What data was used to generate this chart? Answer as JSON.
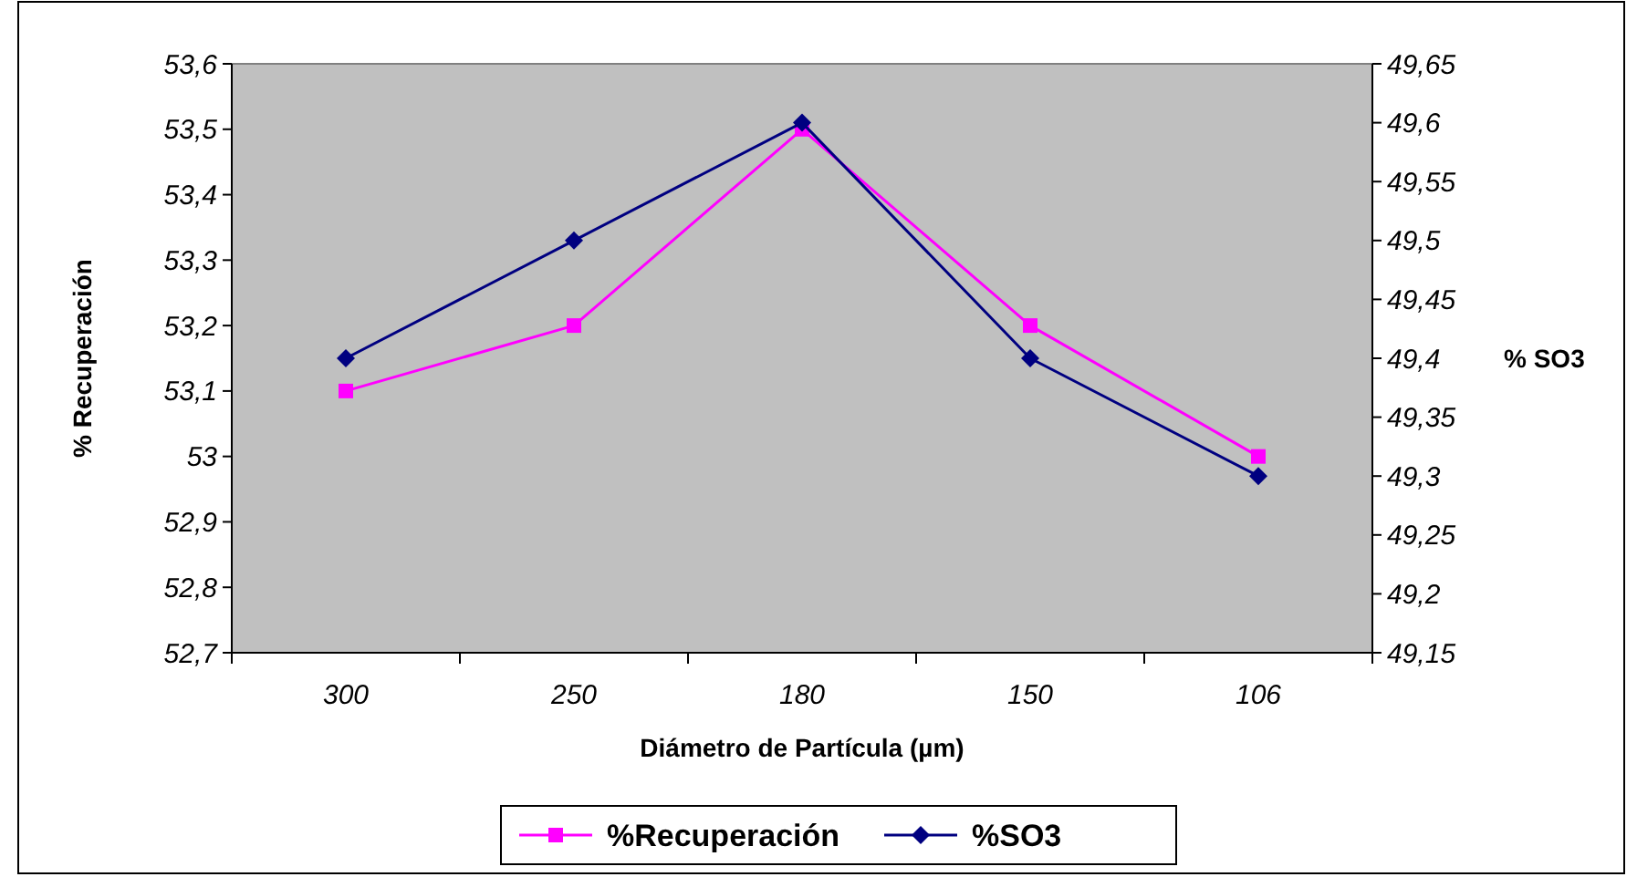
{
  "chart_data": {
    "type": "line",
    "xlabel": "Diámetro de Partícula (µm)",
    "ylabel": "% Recuperación",
    "y2label": "% SO3",
    "categories": [
      "300",
      "250",
      "180",
      "150",
      "106"
    ],
    "series": [
      {
        "name": "%Recuperación",
        "color": "#ff00ff",
        "marker": "square",
        "values": [
          53.1,
          53.2,
          53.5,
          53.2,
          53.0
        ]
      },
      {
        "name": "%SO3",
        "color": "#000080",
        "marker": "diamond",
        "axis": "y2",
        "values": [
          49.4,
          49.5,
          49.6,
          49.4,
          49.3
        ]
      }
    ],
    "ylim": [
      52.7,
      53.6
    ],
    "yticks": [
      {
        "value": 52.7,
        "label": "52,7"
      },
      {
        "value": 52.8,
        "label": "52,8"
      },
      {
        "value": 52.9,
        "label": "52,9"
      },
      {
        "value": 53,
        "label": "53"
      },
      {
        "value": 53.1,
        "label": "53,1"
      },
      {
        "value": 53.2,
        "label": "53,2"
      },
      {
        "value": 53.3,
        "label": "53,3"
      },
      {
        "value": 53.4,
        "label": "53,4"
      },
      {
        "value": 53.5,
        "label": "53,5"
      },
      {
        "value": 53.6,
        "label": "53,6"
      }
    ],
    "y2lim": [
      49.15,
      49.65
    ],
    "y2ticks": [
      {
        "value": 49.15,
        "label": "49,15"
      },
      {
        "value": 49.2,
        "label": "49,2"
      },
      {
        "value": 49.25,
        "label": "49,25"
      },
      {
        "value": 49.3,
        "label": "49,3"
      },
      {
        "value": 49.35,
        "label": "49,35"
      },
      {
        "value": 49.4,
        "label": "49,4"
      },
      {
        "value": 49.45,
        "label": "49,45"
      },
      {
        "value": 49.5,
        "label": "49,5"
      },
      {
        "value": 49.55,
        "label": "49,55"
      },
      {
        "value": 49.6,
        "label": "49,6"
      },
      {
        "value": 49.65,
        "label": "49,65"
      }
    ],
    "grid": false,
    "legend": "bottom"
  }
}
